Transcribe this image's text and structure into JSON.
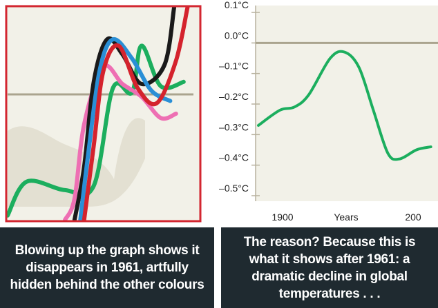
{
  "colors": {
    "border_red": "#d32630",
    "panel_bg": "#f2f1e8",
    "zero_line": "#aaa48e",
    "green": "#1cae5e",
    "pink": "#ee6fb3",
    "black": "#1a1a1a",
    "blue": "#2a8fd6",
    "red": "#d4232d",
    "caption_bg": "#1f2a30"
  },
  "captions": {
    "left": "Blowing up the graph shows it disappears in 1961, artfully hidden behind the other colours",
    "right": "The reason? Because this is what it shows after 1961: a dramatic decline in global temperatures . . ."
  },
  "chart_data": [
    {
      "type": "line",
      "title": "",
      "grid": false,
      "series": [
        {
          "color": "green",
          "points": [
            [
              0,
              0.02
            ],
            [
              0.1,
              0.18
            ],
            [
              0.3,
              0.14
            ],
            [
              0.45,
              0.16
            ],
            [
              0.55,
              0.62
            ],
            [
              0.65,
              0.6
            ],
            [
              0.7,
              0.82
            ],
            [
              0.8,
              0.63
            ],
            [
              0.92,
              0.65
            ]
          ]
        },
        {
          "color": "pink",
          "points": [
            [
              0.3,
              0.0
            ],
            [
              0.35,
              0.1
            ],
            [
              0.4,
              0.45
            ],
            [
              0.5,
              0.72
            ],
            [
              0.6,
              0.64
            ],
            [
              0.7,
              0.58
            ],
            [
              0.8,
              0.48
            ],
            [
              0.88,
              0.5
            ]
          ]
        },
        {
          "color": "black",
          "points": [
            [
              0.35,
              0.0
            ],
            [
              0.4,
              0.25
            ],
            [
              0.45,
              0.65
            ],
            [
              0.52,
              0.85
            ],
            [
              0.6,
              0.78
            ],
            [
              0.7,
              0.64
            ],
            [
              0.82,
              0.73
            ],
            [
              0.87,
              1.0
            ]
          ]
        },
        {
          "color": "blue",
          "points": [
            [
              0.38,
              0.0
            ],
            [
              0.42,
              0.3
            ],
            [
              0.48,
              0.7
            ],
            [
              0.55,
              0.85
            ],
            [
              0.65,
              0.76
            ],
            [
              0.75,
              0.61
            ],
            [
              0.85,
              0.56
            ]
          ]
        },
        {
          "color": "red",
          "points": [
            [
              0.4,
              0.0
            ],
            [
              0.45,
              0.35
            ],
            [
              0.5,
              0.7
            ],
            [
              0.58,
              0.82
            ],
            [
              0.68,
              0.62
            ],
            [
              0.78,
              0.55
            ],
            [
              0.88,
              0.75
            ],
            [
              0.94,
              1.0
            ]
          ]
        }
      ]
    },
    {
      "type": "line",
      "title": "",
      "xlabel": "Years",
      "ylabel": "",
      "ylim": [
        -0.5,
        0.1
      ],
      "x_tick_labels": [
        "1900",
        "Years",
        "200"
      ],
      "y_ticks": [
        {
          "value": 0.1,
          "label": "0.1°C"
        },
        {
          "value": 0.0,
          "label": "0.0°C"
        },
        {
          "value": -0.1,
          "label": "–0.1°C"
        },
        {
          "value": -0.2,
          "label": "–0.2°C"
        },
        {
          "value": -0.3,
          "label": "–0.3°C"
        },
        {
          "value": -0.4,
          "label": "–0.4°C"
        },
        {
          "value": -0.5,
          "label": "–0.5°C"
        }
      ],
      "series": [
        {
          "color": "green",
          "points": [
            [
              1880,
              -0.27
            ],
            [
              1895,
              -0.22
            ],
            [
              1905,
              -0.21
            ],
            [
              1915,
              -0.17
            ],
            [
              1930,
              -0.05
            ],
            [
              1940,
              -0.03
            ],
            [
              1950,
              -0.08
            ],
            [
              1960,
              -0.22
            ],
            [
              1970,
              -0.36
            ],
            [
              1978,
              -0.38
            ],
            [
              1990,
              -0.35
            ],
            [
              2000,
              -0.34
            ]
          ]
        }
      ]
    }
  ]
}
